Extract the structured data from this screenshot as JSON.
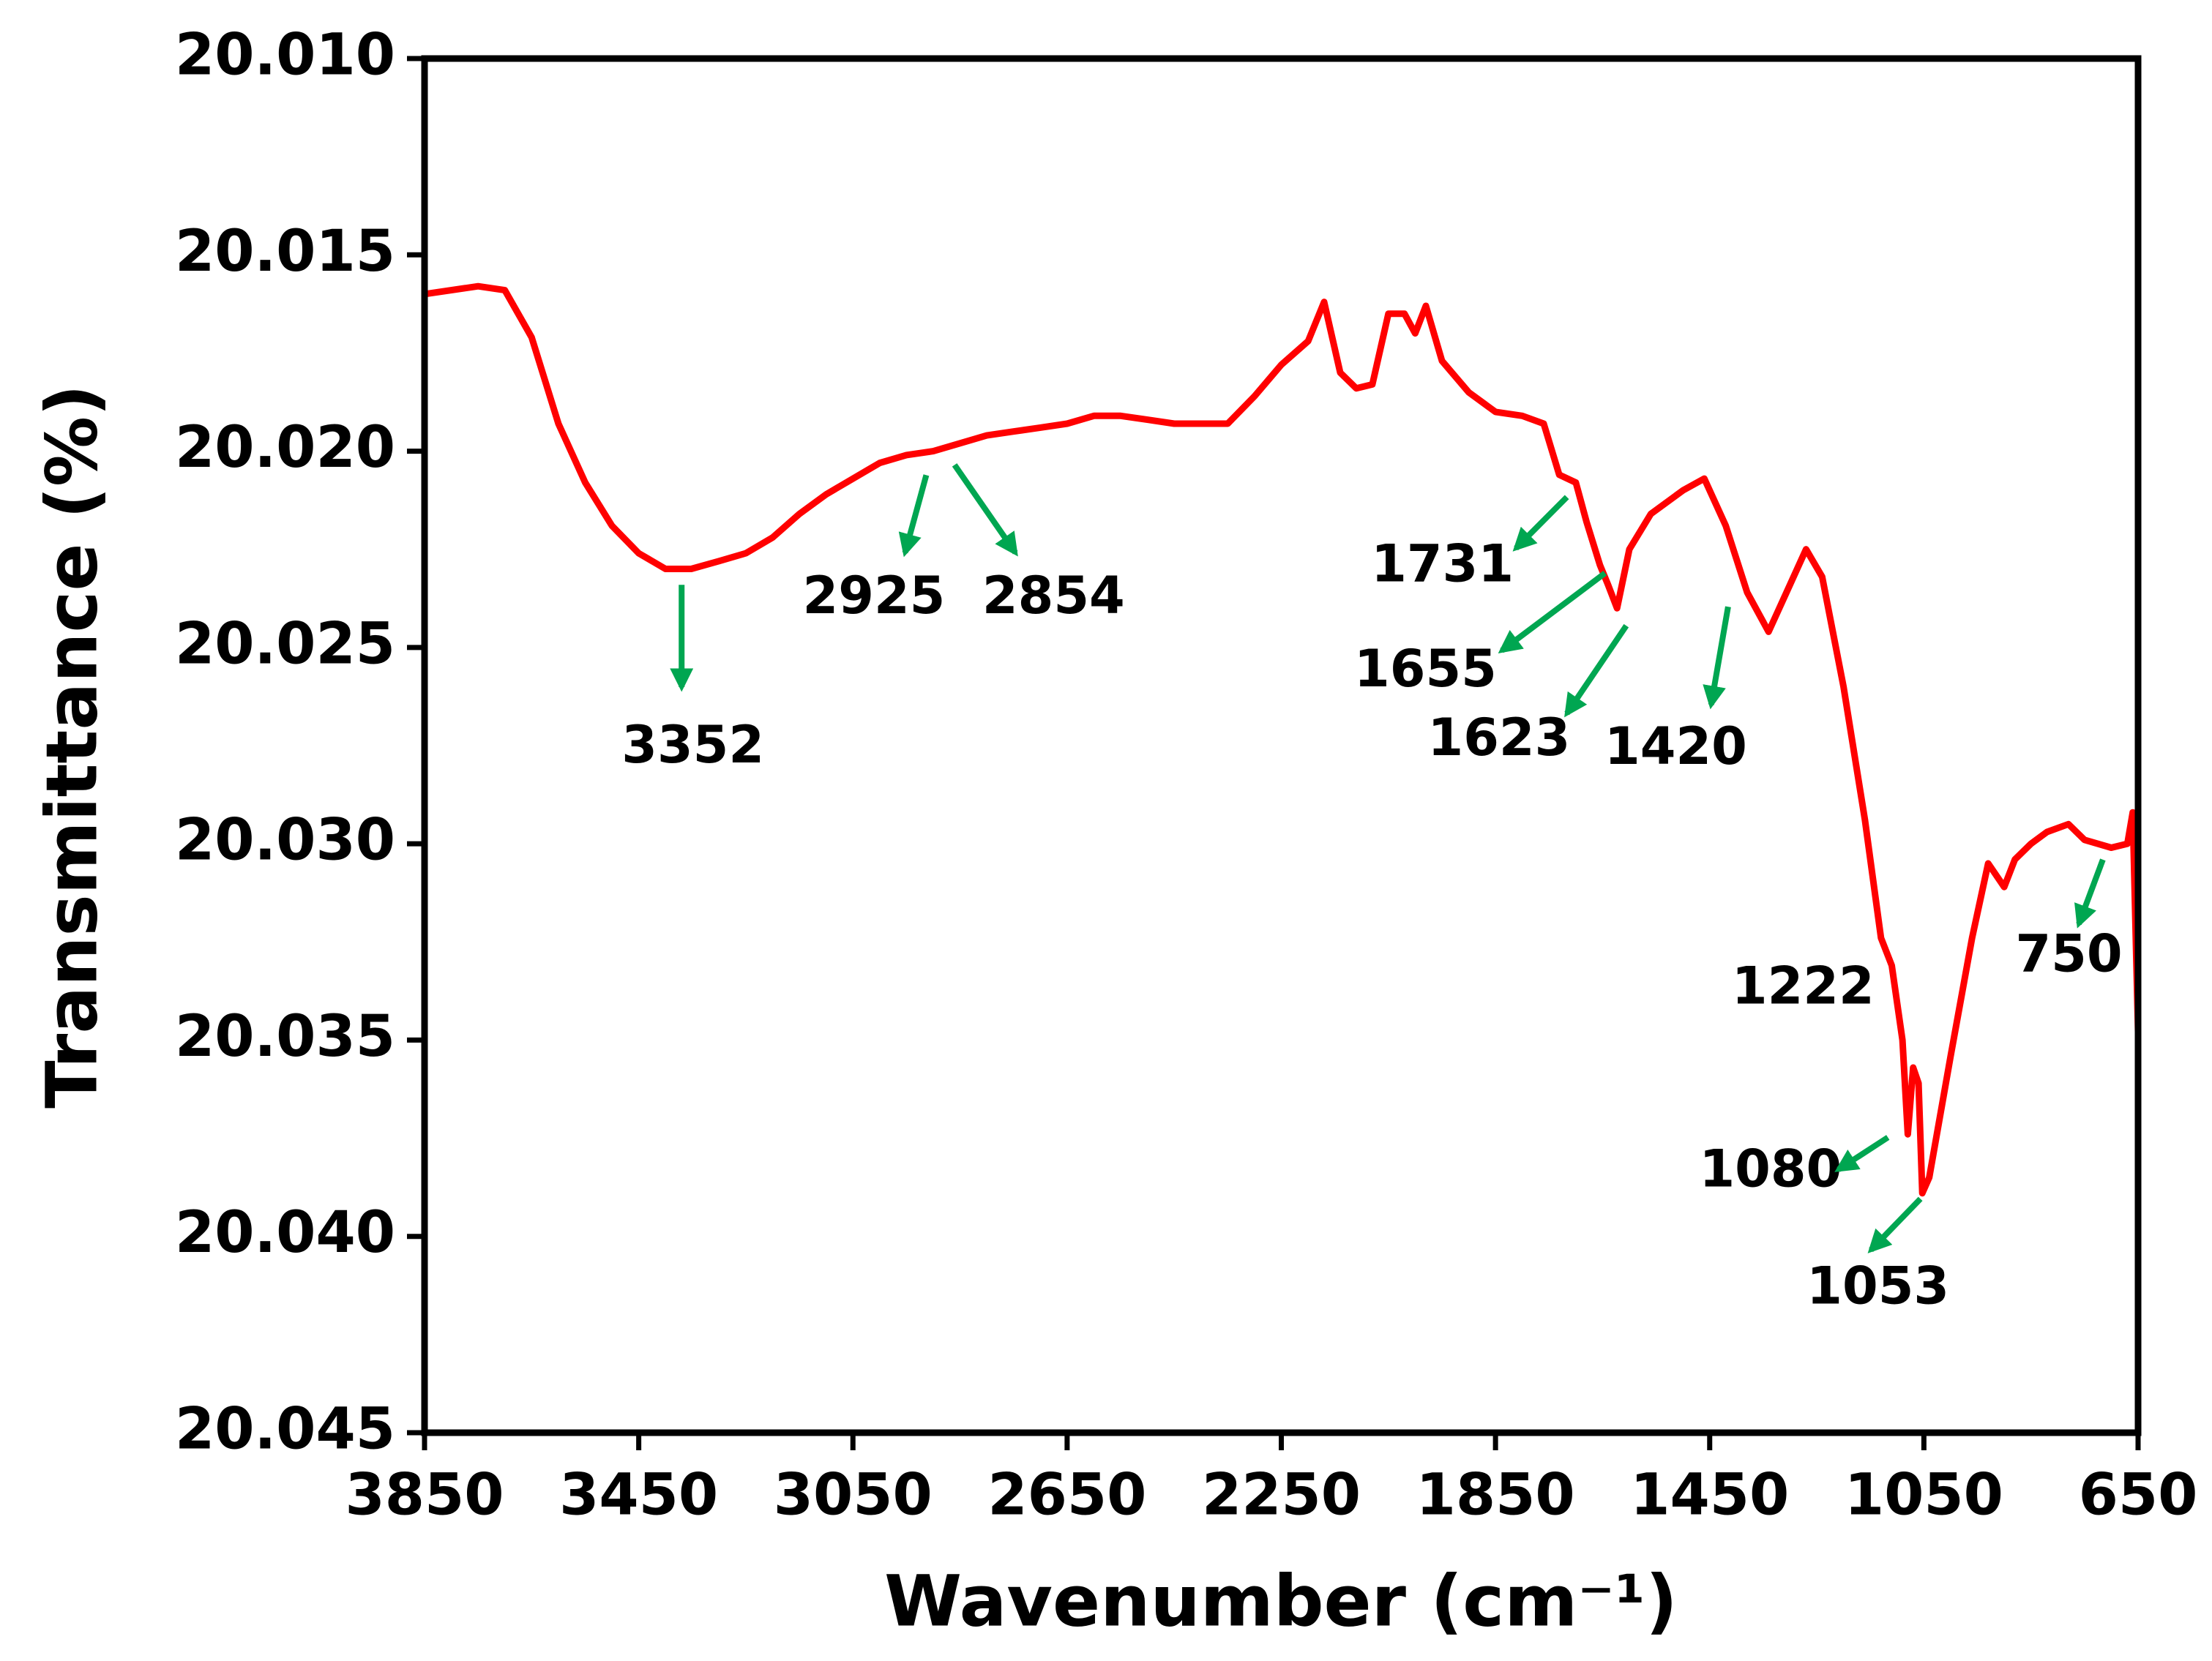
{
  "chart_data": {
    "type": "line",
    "x_label": "Wavenumber (cm⁻¹)",
    "y_label": "Transmittance (%)",
    "color": "#ff0000",
    "annotation_color": "#00a651",
    "xlim": [
      3850,
      650
    ],
    "xticks": [
      3850,
      3450,
      3050,
      2650,
      2250,
      1850,
      1450,
      1050,
      650
    ],
    "ylim": [
      20.045,
      20.01
    ],
    "yticks": [
      {
        "value": 20.01,
        "label": "20.010"
      },
      {
        "value": 20.015,
        "label": "20.015"
      },
      {
        "value": 20.02,
        "label": "20.020"
      },
      {
        "value": 20.025,
        "label": "20.025"
      },
      {
        "value": 20.03,
        "label": "20.030"
      },
      {
        "value": 20.035,
        "label": "20.035"
      },
      {
        "value": 20.04,
        "label": "20.040"
      },
      {
        "value": 20.045,
        "label": "20.045"
      }
    ],
    "x": [
      3850,
      3750,
      3700,
      3650,
      3600,
      3550,
      3500,
      3450,
      3400,
      3352,
      3300,
      3250,
      3200,
      3150,
      3100,
      3050,
      3000,
      2950,
      2900,
      2850,
      2800,
      2750,
      2700,
      2650,
      2600,
      2550,
      2500,
      2450,
      2400,
      2350,
      2300,
      2250,
      2200,
      2170,
      2140,
      2110,
      2080,
      2050,
      2020,
      2000,
      1980,
      1950,
      1900,
      1850,
      1800,
      1760,
      1731,
      1700,
      1680,
      1655,
      1640,
      1623,
      1600,
      1560,
      1500,
      1460,
      1420,
      1380,
      1340,
      1300,
      1270,
      1240,
      1200,
      1160,
      1130,
      1110,
      1090,
      1080,
      1070,
      1060,
      1053,
      1040,
      1000,
      960,
      930,
      900,
      880,
      850,
      820,
      780,
      750,
      700,
      670,
      660,
      650
    ],
    "values": [
      20.016,
      20.0158,
      20.0159,
      20.0171,
      20.0193,
      20.0208,
      20.0219,
      20.0226,
      20.023,
      20.023,
      20.0228,
      20.0226,
      20.0222,
      20.0216,
      20.0211,
      20.0207,
      20.0203,
      20.0201,
      20.02,
      20.0198,
      20.0196,
      20.0195,
      20.0194,
      20.0193,
      20.0191,
      20.0191,
      20.0192,
      20.0193,
      20.0193,
      20.0193,
      20.0186,
      20.0178,
      20.0172,
      20.0162,
      20.018,
      20.0184,
      20.0183,
      20.0165,
      20.0165,
      20.017,
      20.0163,
      20.0177,
      20.0185,
      20.019,
      20.0191,
      20.0193,
      20.0206,
      20.0208,
      20.0218,
      20.0229,
      20.0234,
      20.024,
      20.0225,
      20.0216,
      20.021,
      20.0207,
      20.0219,
      20.0236,
      20.0246,
      20.0234,
      20.0225,
      20.0232,
      20.026,
      20.0294,
      20.0324,
      20.0331,
      20.035,
      20.0374,
      20.0357,
      20.0361,
      20.0389,
      20.0385,
      20.0354,
      20.0324,
      20.0305,
      20.0311,
      20.0304,
      20.03,
      20.0297,
      20.0295,
      20.0299,
      20.0301,
      20.03,
      20.0292,
      20.0348
    ],
    "annotations": [
      "3352",
      "2925",
      "2854",
      "1731",
      "1655",
      "1623",
      "1420",
      "1222",
      "1080",
      "1053",
      "750"
    ]
  }
}
